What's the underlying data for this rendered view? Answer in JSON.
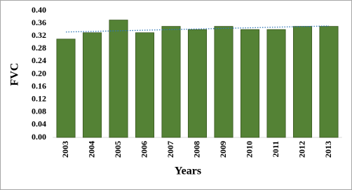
{
  "chart_data": {
    "type": "bar",
    "categories": [
      "2003",
      "2004",
      "2005",
      "2006",
      "2007",
      "2008",
      "2009",
      "2010",
      "2011",
      "2012",
      "2013"
    ],
    "values": [
      0.31,
      0.33,
      0.37,
      0.33,
      0.35,
      0.34,
      0.35,
      0.34,
      0.34,
      0.35,
      0.35
    ],
    "color": "#548235",
    "trendline": true,
    "trendline_color": "#2e75b6",
    "x_label": "Years",
    "y_label": "FVC",
    "ylim": [
      0,
      0.4
    ],
    "yticks": [
      {
        "value": 0,
        "label": "0.00"
      },
      {
        "value": 0.04,
        "label": "0.04"
      },
      {
        "value": 0.08,
        "label": "0.08"
      },
      {
        "value": 0.12,
        "label": "0.12"
      },
      {
        "value": 0.16,
        "label": "0.16"
      },
      {
        "value": 0.2,
        "label": "0.20"
      },
      {
        "value": 0.24,
        "label": "0.24"
      },
      {
        "value": 0.28,
        "label": "0.28"
      },
      {
        "value": 0.32,
        "label": "0.32"
      },
      {
        "value": 0.36,
        "label": "0.36"
      },
      {
        "value": 0.4,
        "label": "0.40"
      }
    ],
    "grid": false
  }
}
